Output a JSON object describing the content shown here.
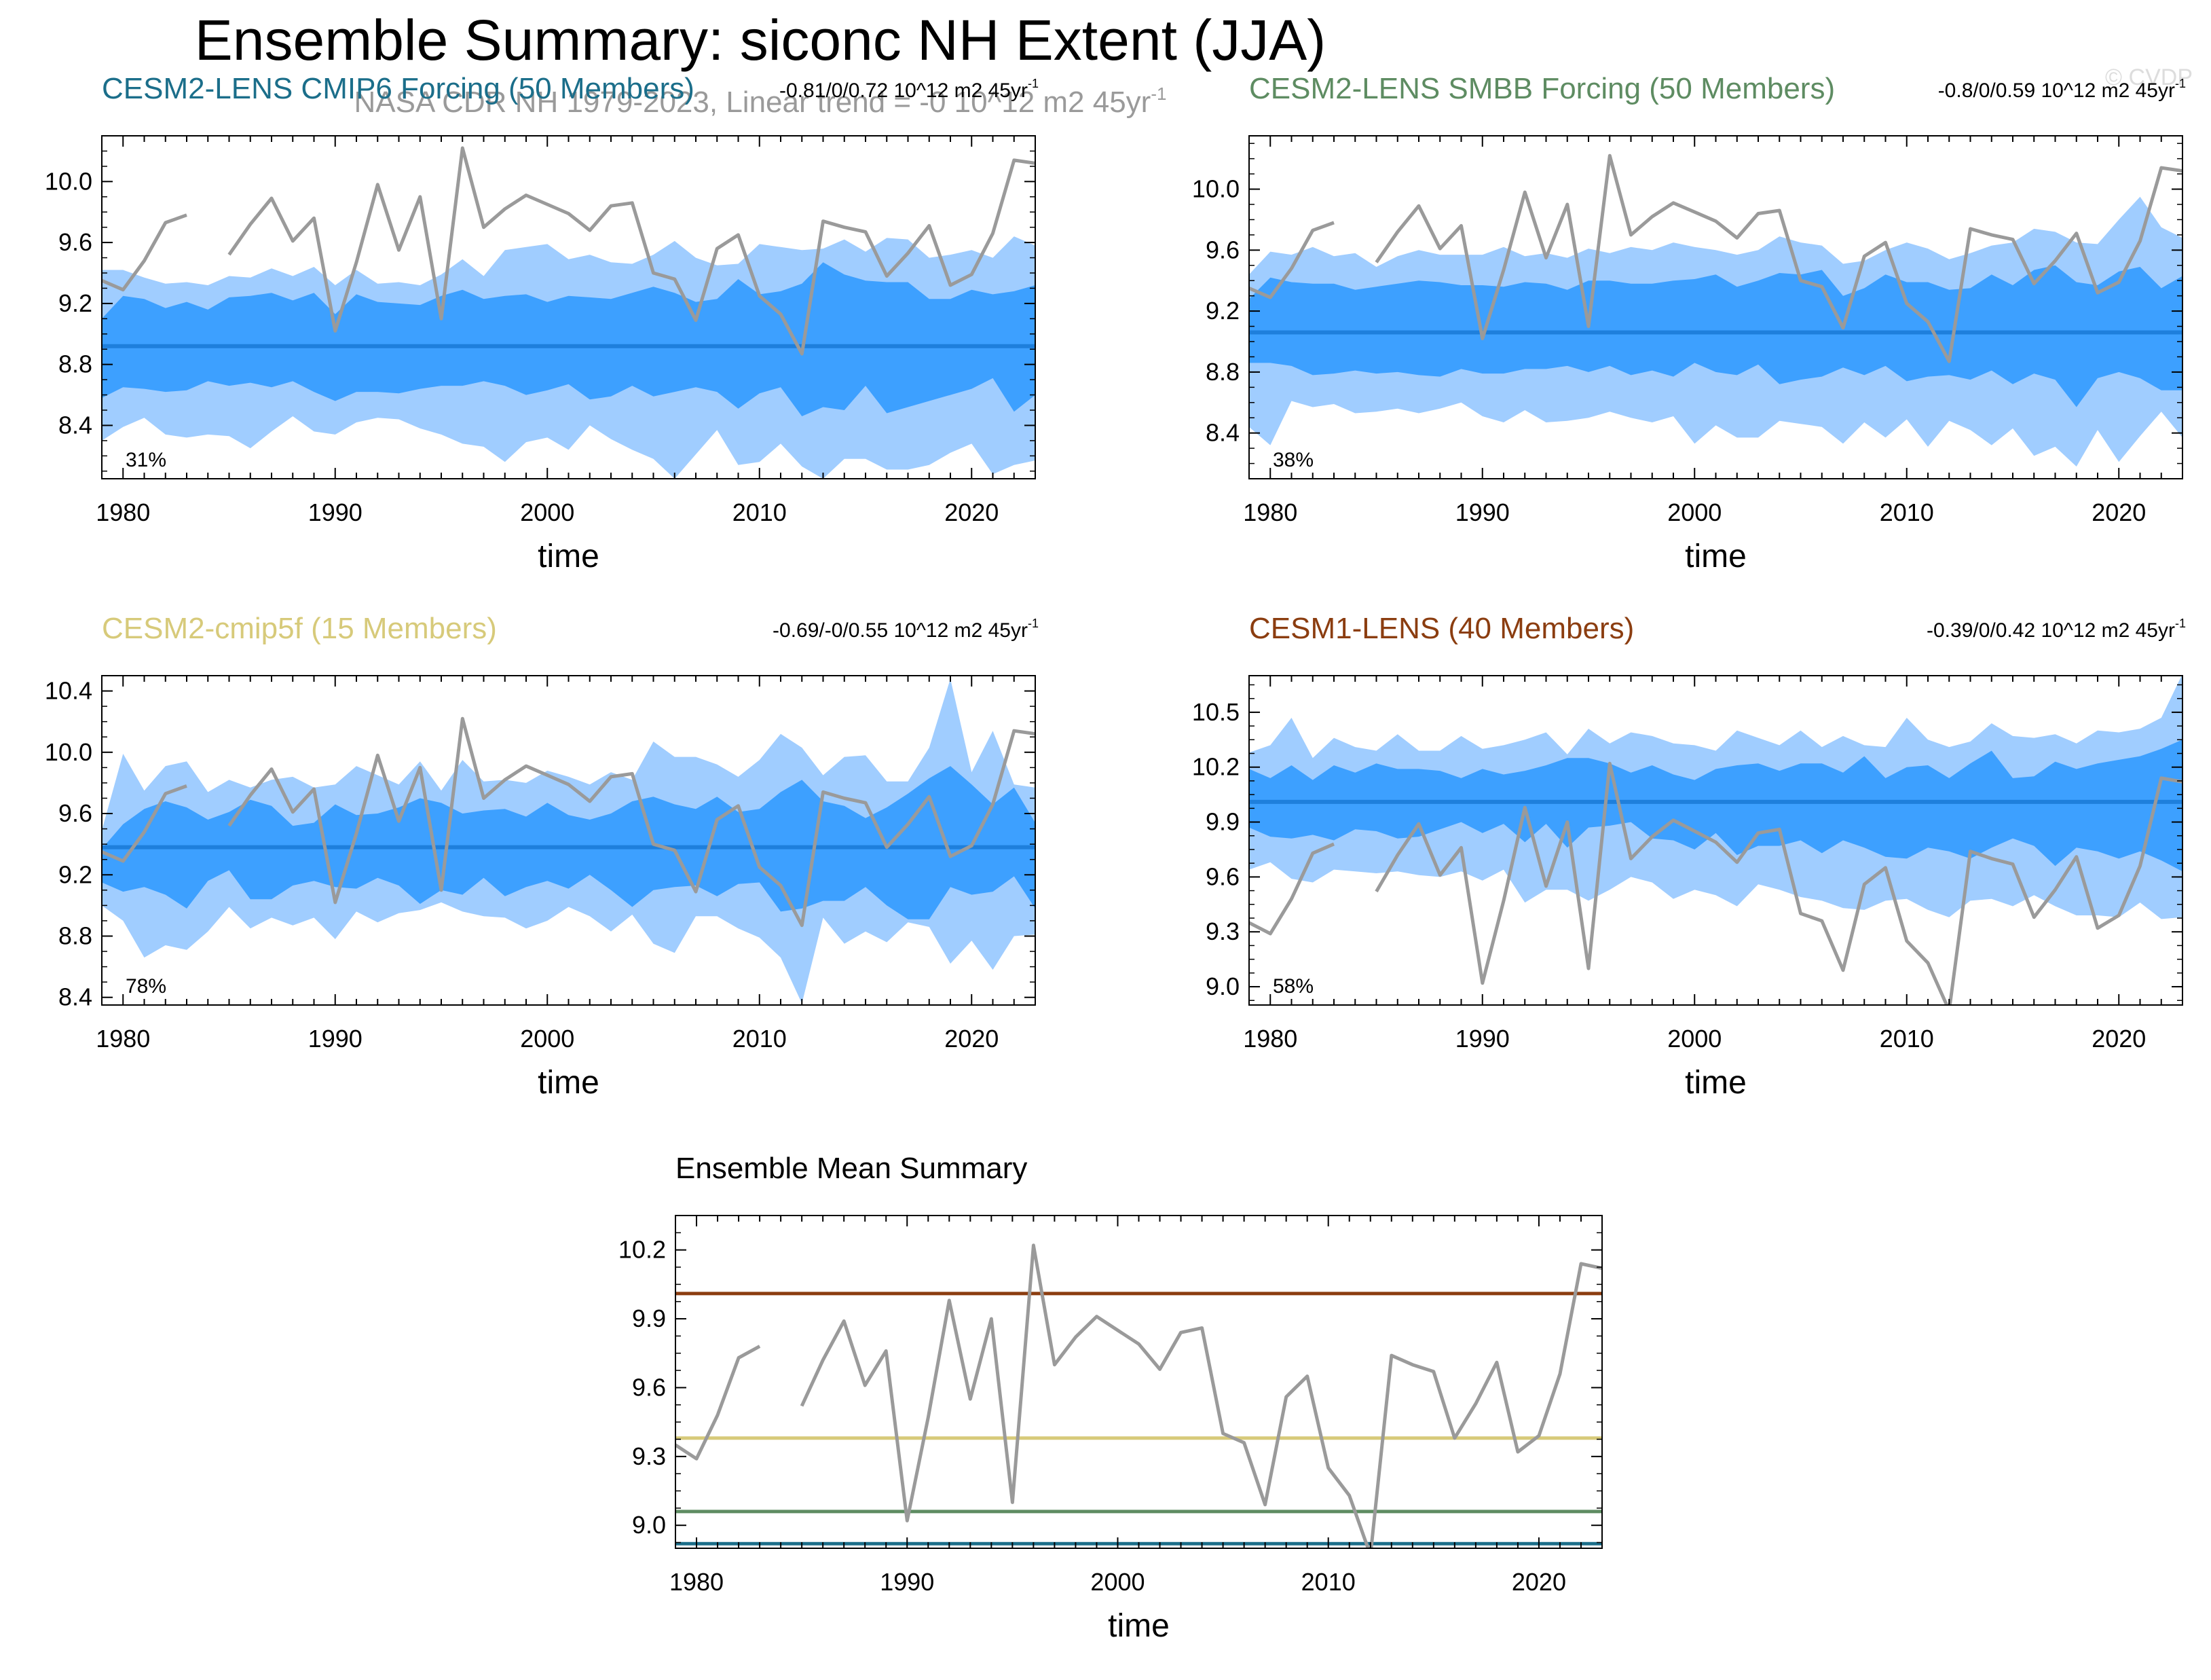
{
  "title": "Ensemble Summary: siconc NH Extent (JJA)",
  "subtitle": "NASA CDR NH 1979-2023, Linear trend = -0 10^12 m2 45yr",
  "subtitle_sup": "-1",
  "watermark": "© CVDP",
  "colors": {
    "obs": "#9a9a9a",
    "spread_outer": "#a0cdff",
    "spread_inner": "#3da0ff",
    "mean": "#1e7fdc"
  },
  "chart_data": [
    {
      "id": "p1",
      "type": "area",
      "title": "CESM2-LENS CMIP6 Forcing (50 Members)",
      "title_color": "#1b6e8a",
      "trend": "-0.81/0/0.72 10^12 m2 45yr",
      "trend_sup": "-1",
      "percent": "31%",
      "xlabel": "time",
      "xlim": [
        1979,
        2023
      ],
      "ylim": [
        8.05,
        10.3
      ],
      "xticks": [
        1980,
        1990,
        2000,
        2010,
        2020
      ],
      "yticks": [
        "8.4",
        "8.8",
        "9.2",
        "9.6",
        "10.0"
      ],
      "mean": 8.92,
      "outer_hi": [
        9.42,
        9.42,
        9.37,
        9.33,
        9.34,
        9.32,
        9.38,
        9.37,
        9.43,
        9.38,
        9.44,
        9.32,
        9.42,
        9.33,
        9.34,
        9.32,
        9.39,
        9.49,
        9.38,
        9.55,
        9.57,
        9.59,
        9.49,
        9.52,
        9.47,
        9.46,
        9.52,
        9.61,
        9.5,
        9.45,
        9.46,
        9.59,
        9.57,
        9.55,
        9.56,
        9.62,
        9.54,
        9.63,
        9.62,
        9.5,
        9.52,
        9.55,
        9.5,
        9.64,
        9.58
      ],
      "inner_hi": [
        9.1,
        9.25,
        9.23,
        9.17,
        9.21,
        9.16,
        9.24,
        9.25,
        9.27,
        9.22,
        9.27,
        9.13,
        9.26,
        9.21,
        9.2,
        9.19,
        9.25,
        9.29,
        9.23,
        9.25,
        9.26,
        9.21,
        9.25,
        9.24,
        9.23,
        9.27,
        9.31,
        9.27,
        9.21,
        9.23,
        9.36,
        9.26,
        9.28,
        9.33,
        9.47,
        9.39,
        9.35,
        9.34,
        9.34,
        9.23,
        9.23,
        9.29,
        9.26,
        9.28,
        9.32
      ],
      "inner_lo": [
        8.58,
        8.65,
        8.64,
        8.62,
        8.63,
        8.69,
        8.66,
        8.68,
        8.65,
        8.69,
        8.62,
        8.56,
        8.62,
        8.62,
        8.61,
        8.64,
        8.66,
        8.66,
        8.69,
        8.66,
        8.6,
        8.63,
        8.67,
        8.57,
        8.59,
        8.66,
        8.59,
        8.62,
        8.65,
        8.62,
        8.51,
        8.61,
        8.65,
        8.46,
        8.52,
        8.5,
        8.66,
        8.48,
        8.52,
        8.56,
        8.6,
        8.64,
        8.71,
        8.49,
        8.6
      ],
      "outer_lo": [
        8.3,
        8.39,
        8.45,
        8.34,
        8.32,
        8.34,
        8.33,
        8.25,
        8.36,
        8.46,
        8.36,
        8.34,
        8.42,
        8.45,
        8.44,
        8.38,
        8.34,
        8.28,
        8.26,
        8.16,
        8.29,
        8.32,
        8.24,
        8.4,
        8.31,
        8.24,
        8.18,
        8.05,
        8.21,
        8.37,
        8.14,
        8.16,
        8.28,
        8.13,
        8.05,
        8.18,
        8.18,
        8.11,
        8.11,
        8.14,
        8.22,
        8.28,
        8.08,
        8.14,
        8.17
      ]
    },
    {
      "id": "p2",
      "type": "area",
      "title": "CESM2-LENS SMBB Forcing (50 Members)",
      "title_color": "#5e8c62",
      "trend": "-0.8/0/0.59 10^12 m2 45yr",
      "trend_sup": "-1",
      "percent": "38%",
      "xlabel": "time",
      "xlim": [
        1979,
        2023
      ],
      "ylim": [
        8.1,
        10.35
      ],
      "xticks": [
        1980,
        1990,
        2000,
        2010,
        2020
      ],
      "yticks": [
        "8.4",
        "8.8",
        "9.2",
        "9.6",
        "10.0"
      ],
      "mean": 9.06,
      "outer_hi": [
        9.44,
        9.59,
        9.57,
        9.62,
        9.56,
        9.58,
        9.49,
        9.56,
        9.6,
        9.57,
        9.57,
        9.57,
        9.62,
        9.56,
        9.58,
        9.55,
        9.61,
        9.58,
        9.62,
        9.6,
        9.65,
        9.62,
        9.6,
        9.57,
        9.6,
        9.69,
        9.65,
        9.63,
        9.51,
        9.53,
        9.6,
        9.65,
        9.61,
        9.54,
        9.58,
        9.63,
        9.65,
        9.74,
        9.72,
        9.65,
        9.64,
        9.8,
        9.95,
        9.75,
        9.68
      ],
      "inner_hi": [
        9.28,
        9.42,
        9.39,
        9.38,
        9.38,
        9.34,
        9.36,
        9.38,
        9.4,
        9.39,
        9.37,
        9.37,
        9.36,
        9.39,
        9.38,
        9.34,
        9.4,
        9.4,
        9.38,
        9.38,
        9.4,
        9.41,
        9.44,
        9.36,
        9.4,
        9.45,
        9.44,
        9.47,
        9.3,
        9.35,
        9.44,
        9.39,
        9.39,
        9.34,
        9.35,
        9.44,
        9.37,
        9.47,
        9.5,
        9.39,
        9.37,
        9.46,
        9.49,
        9.35,
        9.43
      ],
      "inner_lo": [
        8.86,
        8.86,
        8.84,
        8.78,
        8.79,
        8.81,
        8.79,
        8.8,
        8.78,
        8.77,
        8.82,
        8.79,
        8.79,
        8.82,
        8.82,
        8.84,
        8.8,
        8.84,
        8.78,
        8.81,
        8.77,
        8.86,
        8.8,
        8.78,
        8.85,
        8.72,
        8.75,
        8.77,
        8.83,
        8.78,
        8.84,
        8.74,
        8.77,
        8.78,
        8.75,
        8.81,
        8.72,
        8.79,
        8.75,
        8.57,
        8.76,
        8.8,
        8.76,
        8.68,
        8.68
      ],
      "outer_lo": [
        8.44,
        8.32,
        8.61,
        8.57,
        8.59,
        8.53,
        8.54,
        8.56,
        8.53,
        8.56,
        8.6,
        8.51,
        8.47,
        8.55,
        8.47,
        8.48,
        8.5,
        8.54,
        8.5,
        8.47,
        8.51,
        8.33,
        8.45,
        8.37,
        8.37,
        8.48,
        8.46,
        8.44,
        8.33,
        8.47,
        8.37,
        8.49,
        8.31,
        8.48,
        8.42,
        8.32,
        8.43,
        8.25,
        8.31,
        8.18,
        8.42,
        8.21,
        8.38,
        8.54,
        8.37
      ]
    },
    {
      "id": "p3",
      "type": "area",
      "title": "CESM2-cmip5f (15 Members)",
      "title_color": "#d7ca7a",
      "trend": "-0.69/-0/0.55 10^12 m2 45yr",
      "trend_sup": "-1",
      "percent": "78%",
      "xlabel": "time",
      "xlim": [
        1979,
        2023
      ],
      "ylim": [
        8.35,
        10.5
      ],
      "xticks": [
        1980,
        1990,
        2000,
        2010,
        2020
      ],
      "yticks": [
        "8.4",
        "8.8",
        "9.2",
        "9.6",
        "10.0",
        "10.4"
      ],
      "mean": 9.38,
      "outer_hi": [
        9.49,
        9.99,
        9.75,
        9.91,
        9.94,
        9.74,
        9.82,
        9.77,
        9.82,
        9.84,
        9.77,
        9.79,
        9.91,
        9.85,
        9.79,
        9.94,
        9.75,
        9.95,
        9.81,
        9.82,
        9.8,
        9.88,
        9.84,
        9.79,
        9.87,
        9.82,
        10.07,
        9.97,
        9.97,
        9.92,
        9.84,
        9.95,
        10.12,
        10.03,
        9.85,
        9.97,
        9.98,
        9.81,
        9.81,
        10.03,
        10.48,
        9.87,
        10.14,
        9.79,
        9.77
      ],
      "inner_hi": [
        9.37,
        9.53,
        9.63,
        9.68,
        9.64,
        9.56,
        9.61,
        9.69,
        9.65,
        9.52,
        9.54,
        9.66,
        9.59,
        9.6,
        9.64,
        9.7,
        9.67,
        9.6,
        9.62,
        9.63,
        9.58,
        9.67,
        9.59,
        9.56,
        9.6,
        9.68,
        9.71,
        9.66,
        9.63,
        9.71,
        9.61,
        9.63,
        9.74,
        9.82,
        9.68,
        9.65,
        9.57,
        9.64,
        9.73,
        9.83,
        9.91,
        9.79,
        9.66,
        9.77,
        9.54
      ],
      "inner_lo": [
        9.15,
        9.09,
        9.12,
        9.07,
        8.98,
        9.16,
        9.23,
        9.04,
        9.04,
        9.13,
        9.16,
        9.12,
        9.11,
        9.18,
        9.13,
        9.01,
        9.1,
        9.07,
        9.18,
        9.06,
        9.12,
        9.16,
        9.11,
        9.2,
        9.1,
        8.99,
        9.1,
        9.12,
        9.13,
        9.06,
        9.14,
        9.15,
        8.96,
        8.98,
        9.03,
        9.03,
        9.12,
        9.0,
        8.91,
        8.91,
        9.12,
        9.07,
        9.09,
        9.19,
        8.98
      ],
      "outer_lo": [
        9.0,
        8.9,
        8.66,
        8.74,
        8.71,
        8.83,
        8.99,
        8.85,
        8.92,
        8.87,
        8.92,
        8.78,
        8.96,
        8.89,
        8.95,
        8.97,
        9.02,
        8.96,
        8.93,
        8.92,
        8.85,
        8.9,
        8.99,
        8.93,
        8.83,
        8.94,
        8.75,
        8.69,
        8.93,
        8.93,
        8.85,
        8.79,
        8.66,
        8.36,
        8.92,
        8.75,
        8.83,
        8.76,
        8.89,
        8.86,
        8.62,
        8.77,
        8.58,
        8.8,
        8.81
      ]
    },
    {
      "id": "p4",
      "type": "area",
      "title": "CESM1-LENS (40 Members)",
      "title_color": "#8b3d10",
      "trend": "-0.39/0/0.42 10^12 m2 45yr",
      "trend_sup": "-1",
      "percent": "58%",
      "xlabel": "time",
      "xlim": [
        1979,
        2023
      ],
      "ylim": [
        8.9,
        10.7
      ],
      "xticks": [
        1980,
        1990,
        2000,
        2010,
        2020
      ],
      "yticks": [
        "9.0",
        "9.3",
        "9.6",
        "9.9",
        "10.2",
        "10.5"
      ],
      "mean": 10.01,
      "outer_hi": [
        10.28,
        10.32,
        10.47,
        10.25,
        10.36,
        10.31,
        10.29,
        10.38,
        10.29,
        10.29,
        10.37,
        10.3,
        10.32,
        10.35,
        10.39,
        10.27,
        10.41,
        10.33,
        10.39,
        10.37,
        10.33,
        10.32,
        10.29,
        10.4,
        10.36,
        10.32,
        10.4,
        10.31,
        10.37,
        10.32,
        10.31,
        10.47,
        10.35,
        10.31,
        10.34,
        10.44,
        10.37,
        10.36,
        10.38,
        10.33,
        10.4,
        10.39,
        10.41,
        10.47,
        10.71
      ],
      "inner_hi": [
        10.19,
        10.14,
        10.21,
        10.13,
        10.21,
        10.17,
        10.22,
        10.19,
        10.19,
        10.18,
        10.14,
        10.19,
        10.16,
        10.18,
        10.21,
        10.25,
        10.25,
        10.22,
        10.17,
        10.21,
        10.16,
        10.13,
        10.19,
        10.21,
        10.22,
        10.18,
        10.22,
        10.22,
        10.17,
        10.26,
        10.14,
        10.2,
        10.21,
        10.14,
        10.22,
        10.29,
        10.14,
        10.15,
        10.23,
        10.19,
        10.22,
        10.24,
        10.26,
        10.3,
        10.35
      ],
      "inner_lo": [
        9.87,
        9.82,
        9.81,
        9.83,
        9.8,
        9.86,
        9.85,
        9.81,
        9.82,
        9.86,
        9.9,
        9.84,
        9.89,
        9.79,
        9.89,
        9.76,
        9.87,
        9.88,
        9.9,
        9.81,
        9.8,
        9.75,
        9.84,
        9.72,
        9.77,
        9.77,
        9.8,
        9.73,
        9.8,
        9.76,
        9.71,
        9.7,
        9.76,
        9.74,
        9.7,
        9.76,
        9.81,
        9.77,
        9.66,
        9.76,
        9.74,
        9.7,
        9.74,
        9.69,
        9.63
      ],
      "outer_lo": [
        9.64,
        9.68,
        9.59,
        9.57,
        9.64,
        9.63,
        9.62,
        9.63,
        9.61,
        9.6,
        9.63,
        9.58,
        9.64,
        9.46,
        9.53,
        9.53,
        9.47,
        9.53,
        9.6,
        9.57,
        9.48,
        9.53,
        9.5,
        9.44,
        9.56,
        9.53,
        9.49,
        9.47,
        9.43,
        9.42,
        9.47,
        9.48,
        9.42,
        9.38,
        9.47,
        9.48,
        9.44,
        9.5,
        9.44,
        9.39,
        9.39,
        9.38,
        9.46,
        9.37,
        9.38
      ]
    },
    {
      "id": "p5",
      "type": "line",
      "title": "Ensemble Mean Summary",
      "title_color": "#000000",
      "xlabel": "time",
      "xlim": [
        1979,
        2023
      ],
      "ylim": [
        8.9,
        10.35
      ],
      "xticks": [
        1980,
        1990,
        2000,
        2010,
        2020
      ],
      "yticks": [
        "9.0",
        "9.3",
        "9.6",
        "9.9",
        "10.2"
      ],
      "series": [
        {
          "name": "CESM1-LENS",
          "value": 10.01,
          "color": "#8b3d10"
        },
        {
          "name": "CESM2-cmip5f",
          "value": 9.38,
          "color": "#d7ca7a"
        },
        {
          "name": "CESM2-LENS SMBB Forcing",
          "value": 9.06,
          "color": "#5e8c62"
        },
        {
          "name": "CESM2-LENS CMIP6 Forcing",
          "value": 8.92,
          "color": "#1b6e8a"
        }
      ]
    }
  ],
  "obs": {
    "name": "NASA CDR NH",
    "years": [
      1979,
      1980,
      1981,
      1982,
      1983,
      1984,
      1985,
      1986,
      1987,
      1988,
      1989,
      1990,
      1991,
      1992,
      1993,
      1994,
      1995,
      1996,
      1997,
      1998,
      1999,
      2000,
      2001,
      2002,
      2003,
      2004,
      2005,
      2006,
      2007,
      2008,
      2009,
      2010,
      2011,
      2012,
      2013,
      2014,
      2015,
      2016,
      2017,
      2018,
      2019,
      2020,
      2021,
      2022,
      2023
    ],
    "values": [
      9.35,
      9.29,
      9.48,
      9.73,
      9.78,
      null,
      9.52,
      9.72,
      9.89,
      9.61,
      9.76,
      9.02,
      9.47,
      9.98,
      9.55,
      9.9,
      9.1,
      10.22,
      9.7,
      9.82,
      9.91,
      9.85,
      9.79,
      9.68,
      9.84,
      9.86,
      9.4,
      9.36,
      9.09,
      9.56,
      9.65,
      9.25,
      9.13,
      8.87,
      9.74,
      9.7,
      9.67,
      9.38,
      9.53,
      9.71,
      9.32,
      9.39,
      9.66,
      10.14,
      10.12
    ]
  }
}
